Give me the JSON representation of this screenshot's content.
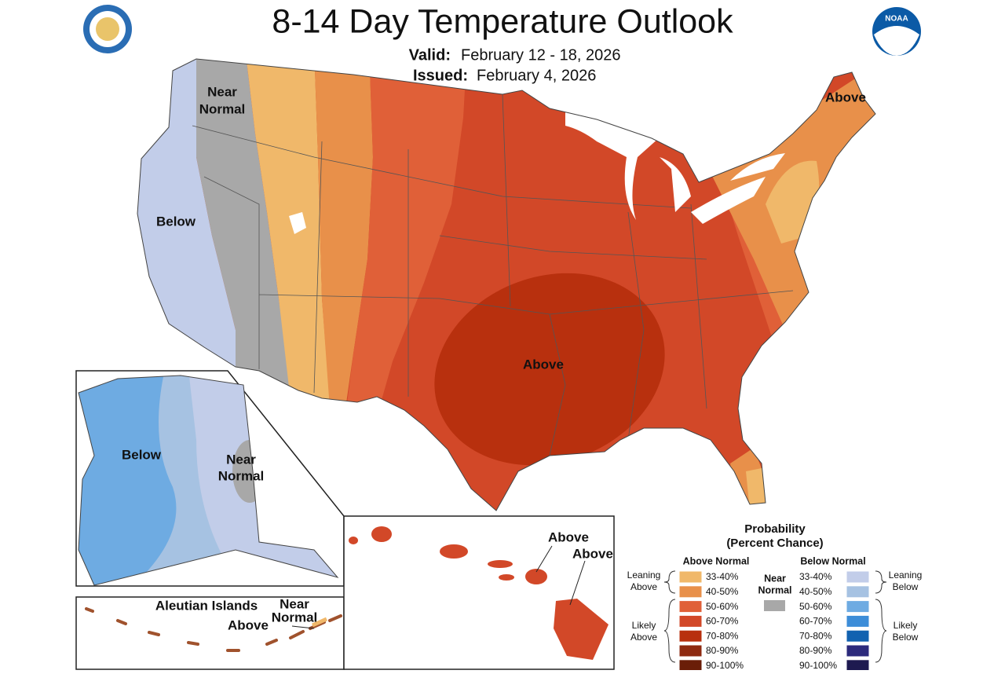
{
  "header": {
    "title": "8-14 Day Temperature Outlook",
    "valid_label": "Valid:",
    "valid": "February 12 - 18, 2026",
    "issued_label": "Issued:",
    "issued": "February 4, 2026",
    "logo_text": "NOAA"
  },
  "labels": [
    {
      "lines": [
        "Near",
        "Normal"
      ]
    },
    {
      "lines": [
        "Below"
      ]
    },
    {
      "lines": [
        "Above"
      ]
    },
    {
      "lines": [
        "Above"
      ]
    },
    {
      "lines": [
        "Below"
      ]
    },
    {
      "lines": [
        "Near",
        "Normal"
      ]
    },
    {
      "lines": [
        "Aleutian Islands"
      ]
    },
    {
      "lines": [
        "Near",
        "Normal"
      ]
    },
    {
      "lines": [
        "Above"
      ]
    },
    {
      "lines": [
        "Above"
      ]
    },
    {
      "lines": [
        "Above"
      ]
    }
  ],
  "legend": {
    "title": [
      "Probability",
      "(Percent Chance)"
    ],
    "above": {
      "heading": "Above Normal",
      "bins": [
        "33-40%",
        "40-50%",
        "50-60%",
        "60-70%",
        "70-80%",
        "80-90%",
        "90-100%"
      ],
      "colors": [
        "#f0b86a",
        "#e8904a",
        "#e06038",
        "#d24828",
        "#b8300e",
        "#8e2a10",
        "#6a1e08"
      ]
    },
    "below": {
      "heading": "Below Normal",
      "bins": [
        "33-40%",
        "40-50%",
        "50-60%",
        "60-70%",
        "70-80%",
        "80-90%",
        "90-100%"
      ],
      "colors": [
        "#c2cde9",
        "#a6c2e2",
        "#6eabe2",
        "#3d8dd8",
        "#1262b0",
        "#2c2a7c",
        "#1e1a50"
      ]
    },
    "near": {
      "lines": [
        "Near",
        "Normal"
      ],
      "color": "#a8a8a8"
    },
    "groups": [
      {
        "lines": [
          "Leaning",
          "Above"
        ]
      },
      {
        "lines": [
          "Likely",
          "Above"
        ]
      },
      {
        "lines": [
          "Leaning",
          "Below"
        ]
      },
      {
        "lines": [
          "Likely",
          "Below"
        ]
      }
    ]
  }
}
